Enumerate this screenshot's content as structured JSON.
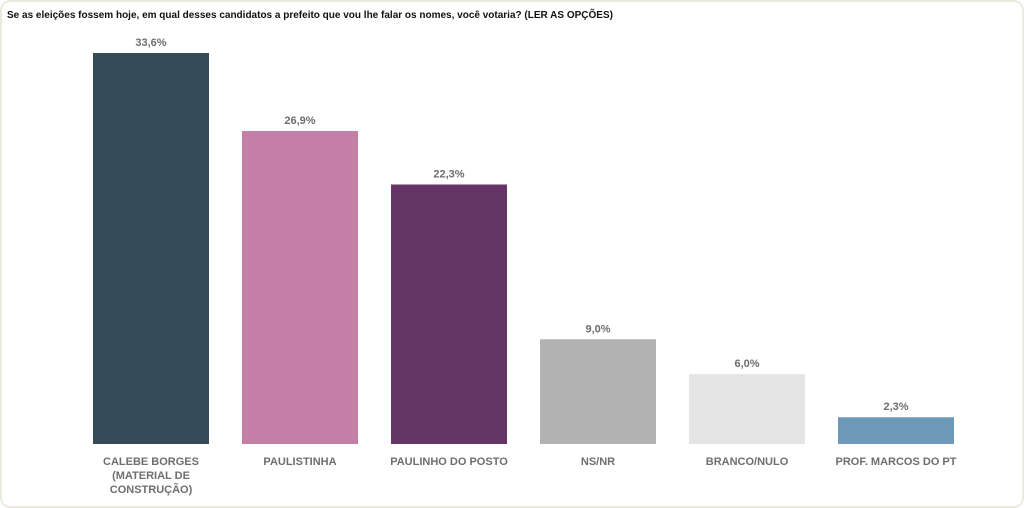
{
  "title": "Se as eleições fossem hoje, em qual desses candidatos a prefeito que vou lhe falar os nomes, você votaria? (LER AS OPÇÕES)",
  "chart_data": {
    "type": "bar",
    "title": "Se as eleições fossem hoje, em qual desses candidatos a prefeito que vou lhe falar os nomes, você votaria? (LER AS OPÇÕES)",
    "categories": [
      [
        "CALEBE BORGES",
        "(MATERIAL DE",
        "CONSTRUÇÃO)"
      ],
      [
        "PAULISTINHA"
      ],
      [
        "PAULINHO DO POSTO"
      ],
      [
        "NS/NR"
      ],
      [
        "BRANCO/NULO"
      ],
      [
        "PROF. MARCOS DO PT"
      ]
    ],
    "values": [
      33.6,
      26.9,
      22.3,
      9.0,
      6.0,
      2.3
    ],
    "value_labels": [
      "33,6%",
      "26,9%",
      "22,3%",
      "9,0%",
      "6,0%",
      "2,3%"
    ],
    "colors": [
      "#344a56",
      "#c47fa6",
      "#653566",
      "#b3b3b3",
      "#e4e4e4",
      "#6e9ab9"
    ],
    "xlabel": "",
    "ylabel": "",
    "ylim": [
      0,
      33.6
    ],
    "grid": false,
    "legend": "none"
  }
}
